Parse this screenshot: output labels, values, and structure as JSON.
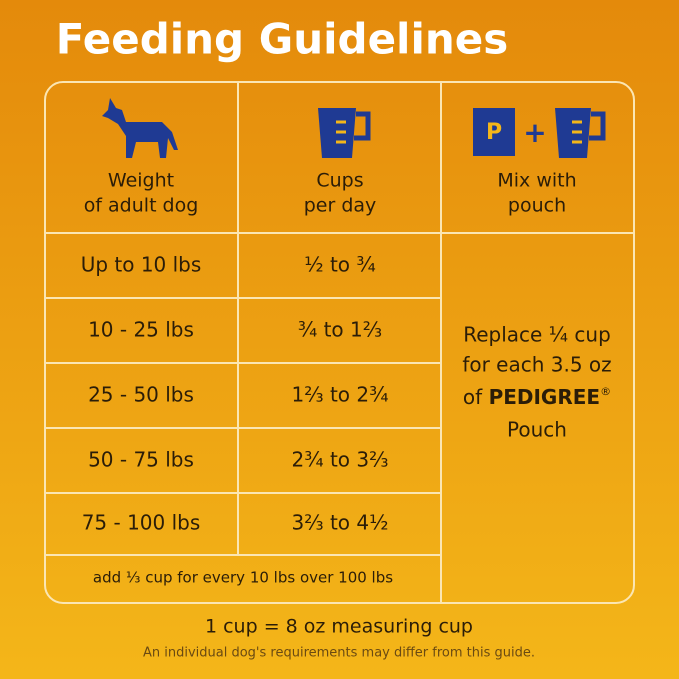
{
  "title": "Feeding Guidelines",
  "table": {
    "headers": [
      [
        "Weight",
        "of adult dog"
      ],
      [
        "Cups",
        "per day"
      ],
      [
        "Mix with",
        "pouch"
      ]
    ],
    "pouch_letter": "P",
    "plus": "+",
    "rows": [
      [
        "Up to 10 lbs",
        "½ to ¾"
      ],
      [
        "10 - 25 lbs",
        "¾ to 1⅔"
      ],
      [
        "25 - 50 lbs",
        "1⅔ to 2¾"
      ],
      [
        "50 - 75 lbs",
        "2¾ to 3⅔"
      ],
      [
        "75 - 100 lbs",
        "3⅔ to 4½"
      ]
    ],
    "footer_row": "add ⅓ cup for every 10 lbs over 100 lbs",
    "mix_note": {
      "lines": [
        "Replace ¼ cup",
        "for each 3.5 oz"
      ],
      "prefix": "of",
      "brand": "PEDIGREE",
      "registered": "®",
      "last": "Pouch"
    }
  },
  "measure": "1 cup = 8 oz measuring cup",
  "disclaimer": "An individual dog's requirements may differ from this guide."
}
